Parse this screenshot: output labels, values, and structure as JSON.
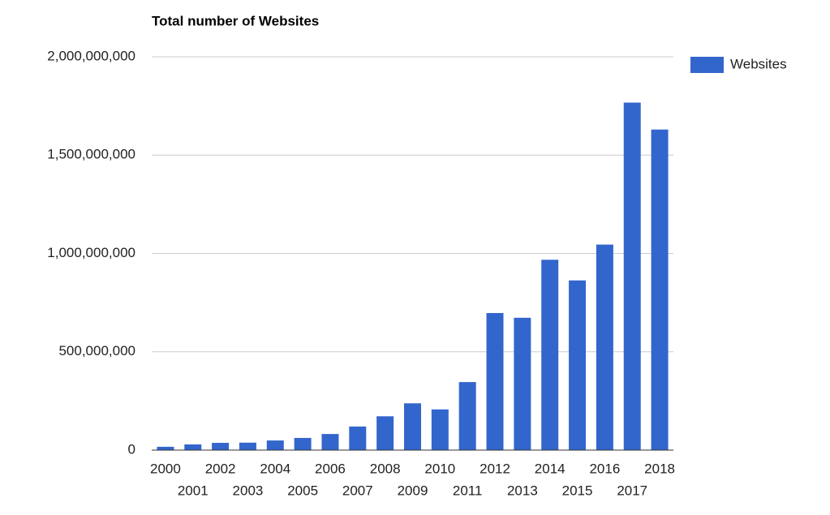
{
  "chart_data": {
    "type": "bar",
    "title": "Total number of Websites",
    "categories": [
      "2000",
      "2001",
      "2002",
      "2003",
      "2004",
      "2005",
      "2006",
      "2007",
      "2008",
      "2009",
      "2010",
      "2011",
      "2012",
      "2013",
      "2014",
      "2015",
      "2016",
      "2017",
      "2018"
    ],
    "series": [
      {
        "name": "Websites",
        "color": "#3366cc",
        "values": [
          17000000,
          29000000,
          37000000,
          38000000,
          49000000,
          62000000,
          82000000,
          120000000,
          172000000,
          238000000,
          207000000,
          346000000,
          697000000,
          673000000,
          968000000,
          863000000,
          1045000000,
          1767000000,
          1630000000
        ]
      }
    ],
    "ylim": [
      0,
      2000000000
    ],
    "yticks": [
      {
        "value": 0,
        "label": "0"
      },
      {
        "value": 500000000,
        "label": "500,000,000"
      },
      {
        "value": 1000000000,
        "label": "1,000,000,000"
      },
      {
        "value": 1500000000,
        "label": "1,500,000,000"
      },
      {
        "value": 2000000000,
        "label": "2,000,000,000"
      }
    ],
    "grid": true,
    "legend": "right"
  }
}
